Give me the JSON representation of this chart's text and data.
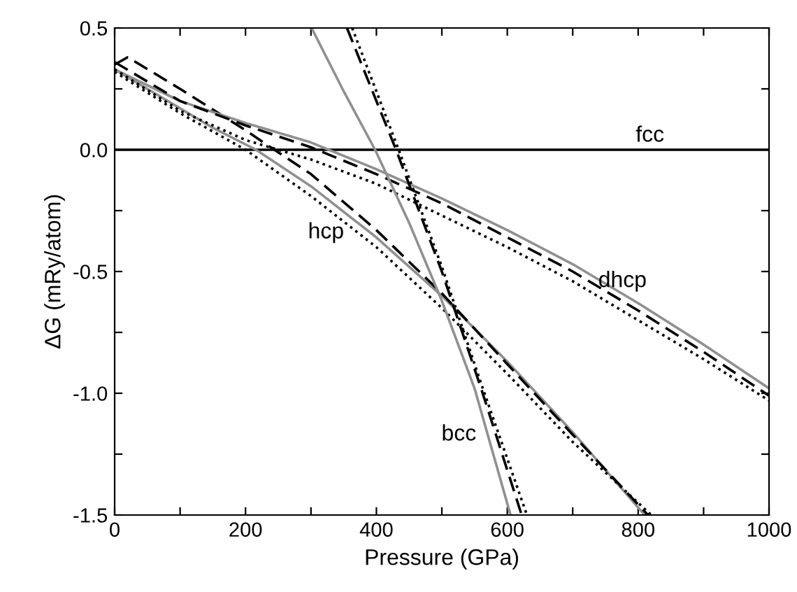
{
  "chart_data": {
    "type": "line",
    "xlabel": "Pressure (GPa)",
    "ylabel": "ΔG (mRy/atom)",
    "xlim": [
      0,
      1000
    ],
    "ylim": [
      -1.5,
      0.5
    ],
    "xticks": [
      0,
      {
        "value": 100,
        "label": null
      },
      200,
      {
        "value": 300,
        "label": null
      },
      400,
      {
        "value": 500,
        "label": null
      },
      600,
      {
        "value": 700,
        "label": null
      },
      800,
      {
        "value": 900,
        "label": null
      },
      1000
    ],
    "yticks": [
      {
        "value": -1.5,
        "label": "-1.5"
      },
      {
        "value": -1.25,
        "label": null
      },
      {
        "value": -1.0,
        "label": "-1.0"
      },
      {
        "value": -0.75,
        "label": null
      },
      {
        "value": -0.5,
        "label": "-0.5"
      },
      {
        "value": -0.25,
        "label": null
      },
      {
        "value": 0.0,
        "label": "0.0"
      },
      {
        "value": 0.25,
        "label": null
      },
      {
        "value": 0.5,
        "label": "0.5"
      }
    ],
    "grid": false,
    "legend": false,
    "marker": "none",
    "series": [
      {
        "name": "fcc",
        "color": "#000000",
        "line_style": "solid",
        "x": [
          0,
          1000
        ],
        "values": [
          0,
          0
        ]
      },
      {
        "name": "hcp",
        "color": "#909090",
        "line_style": "solid",
        "x": [
          0,
          50,
          100,
          150,
          216,
          300,
          400,
          500,
          600,
          700,
          810
        ],
        "values": [
          0.33,
          0.25,
          0.17,
          0.09,
          0,
          -0.15,
          -0.36,
          -0.6,
          -0.87,
          -1.16,
          -1.5
        ]
      },
      {
        "color": "#000000",
        "line_style": "dashed",
        "x": [
          0,
          20,
          100,
          200,
          244,
          300,
          400,
          500,
          600,
          700,
          815
        ],
        "values": [
          0.35,
          0.38,
          0.25,
          0.08,
          0,
          -0.1,
          -0.33,
          -0.59,
          -0.88,
          -1.17,
          -1.5
        ]
      },
      {
        "color": "#000000",
        "line_style": "dotted",
        "x": [
          0,
          100,
          200,
          300,
          400,
          500,
          600,
          700,
          820
        ],
        "values": [
          0.32,
          0.15,
          0,
          -0.19,
          -0.4,
          -0.65,
          -0.92,
          -1.2,
          -1.5
        ]
      },
      {
        "name": "dhcp",
        "color": "#909090",
        "line_style": "solid",
        "x": [
          0,
          100,
          200,
          300,
          400,
          500,
          600,
          700,
          800,
          900,
          1000
        ],
        "values": [
          0.33,
          0.2,
          0.11,
          0.03,
          -0.08,
          -0.2,
          -0.33,
          -0.47,
          -0.63,
          -0.8,
          -0.98
        ]
      },
      {
        "color": "#000000",
        "line_style": "dashed",
        "x": [
          0,
          100,
          200,
          300,
          400,
          500,
          600,
          700,
          800,
          900,
          1000
        ],
        "values": [
          0.36,
          0.2,
          0.1,
          0.01,
          -0.1,
          -0.22,
          -0.36,
          -0.5,
          -0.66,
          -0.83,
          -1.01
        ]
      },
      {
        "color": "#000000",
        "line_style": "dotted",
        "x": [
          0,
          100,
          200,
          300,
          400,
          500,
          600,
          700,
          800,
          900,
          1000
        ],
        "values": [
          0.33,
          0.16,
          0.04,
          -0.04,
          -0.14,
          -0.27,
          -0.4,
          -0.54,
          -0.7,
          -0.86,
          -1.03
        ]
      },
      {
        "name": "bcc",
        "color": "#909090",
        "line_style": "solid",
        "x": [
          301,
          350,
          398,
          450,
          500,
          550,
          605
        ],
        "values": [
          0.5,
          0.24,
          0,
          -0.3,
          -0.62,
          -0.98,
          -1.5
        ]
      },
      {
        "color": "#000000",
        "line_style": "dashed",
        "x": [
          355,
          430,
          500,
          560,
          622
        ],
        "values": [
          0.5,
          0,
          -0.5,
          -0.98,
          -1.5
        ]
      },
      {
        "color": "#000000",
        "line_style": "dotted",
        "x": [
          363,
          434,
          500,
          560,
          630
        ],
        "values": [
          0.5,
          0,
          -0.48,
          -0.96,
          -1.5
        ]
      }
    ]
  }
}
